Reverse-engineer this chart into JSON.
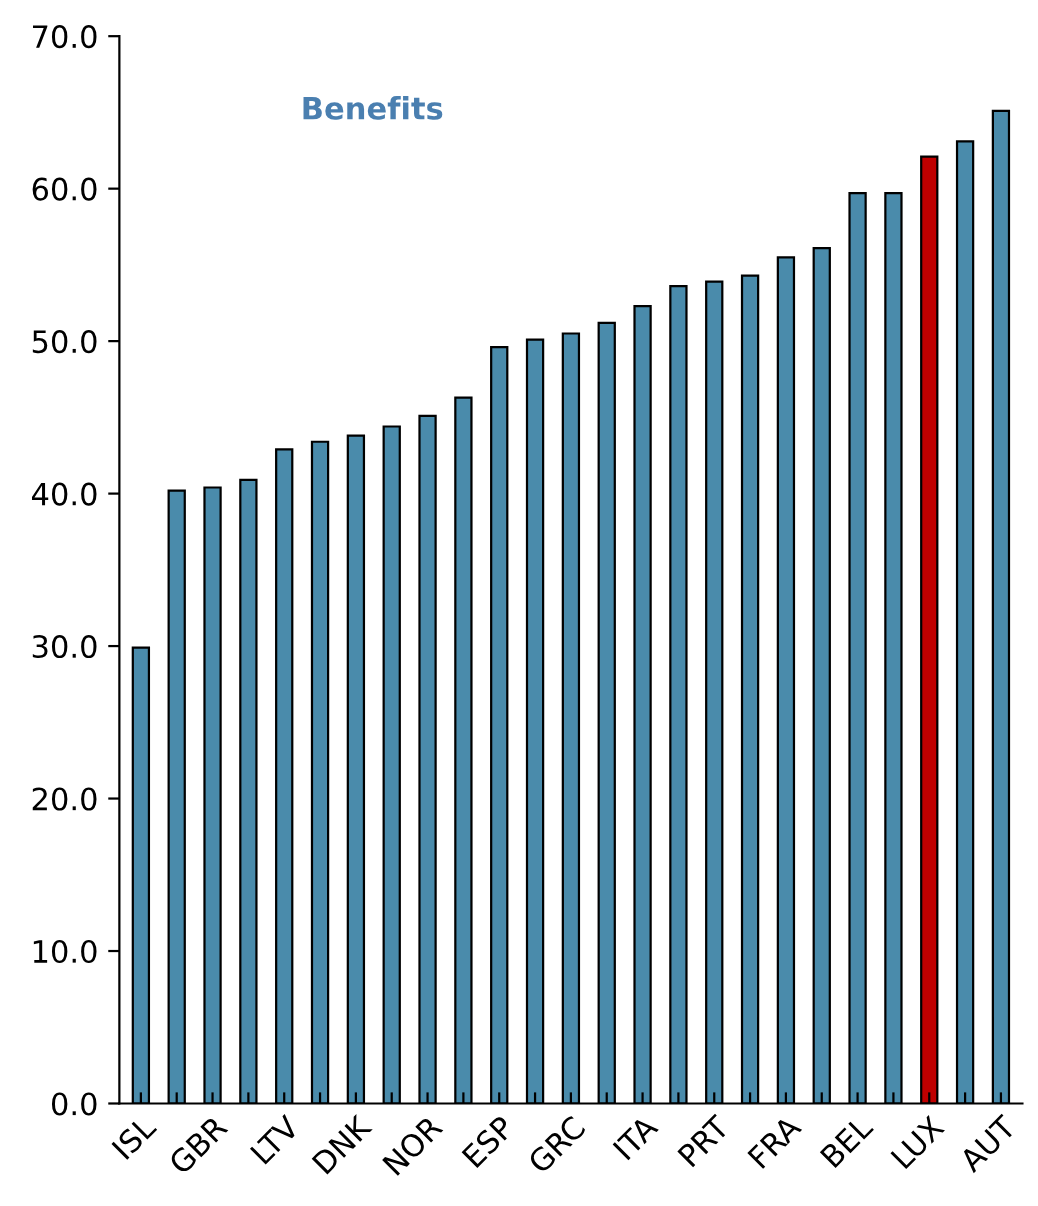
{
  "chart_data": {
    "type": "bar",
    "title": "Benefits",
    "categories": [
      "ISL",
      null,
      "GBR",
      null,
      "LTV",
      null,
      "DNK",
      null,
      "NOR",
      null,
      "ESP",
      null,
      "GRC",
      null,
      "ITA",
      null,
      "PRT",
      null,
      "FRA",
      null,
      "BEL",
      null,
      "LUX",
      null,
      "AUT"
    ],
    "values": [
      29.9,
      40.2,
      40.4,
      40.9,
      42.9,
      43.4,
      43.8,
      44.4,
      45.1,
      46.3,
      49.6,
      50.1,
      50.5,
      51.2,
      52.3,
      53.6,
      53.9,
      54.3,
      55.5,
      56.1,
      59.7,
      59.7,
      62.1,
      63.1,
      65.1
    ],
    "colors": [
      "#4a8bab",
      "#4a8bab",
      "#4a8bab",
      "#4a8bab",
      "#4a8bab",
      "#4a8bab",
      "#4a8bab",
      "#4a8bab",
      "#4a8bab",
      "#4a8bab",
      "#4a8bab",
      "#4a8bab",
      "#4a8bab",
      "#4a8bab",
      "#4a8bab",
      "#4a8bab",
      "#4a8bab",
      "#4a8bab",
      "#4a8bab",
      "#4a8bab",
      "#4a8bab",
      "#4a8bab",
      "#c00000",
      "#4a8bab",
      "#4a8bab"
    ],
    "ylim": [
      0,
      70
    ],
    "yticks": [
      {
        "value": 0,
        "label": "0.0"
      },
      {
        "value": 10,
        "label": "10.0"
      },
      {
        "value": 20,
        "label": "20.0"
      },
      {
        "value": 30,
        "label": "30.0"
      },
      {
        "value": 40,
        "label": "40.0"
      },
      {
        "value": 50,
        "label": "50.0"
      },
      {
        "value": 60,
        "label": "60.0"
      },
      {
        "value": 70,
        "label": "70.0"
      }
    ],
    "grid": false,
    "legend": false
  }
}
